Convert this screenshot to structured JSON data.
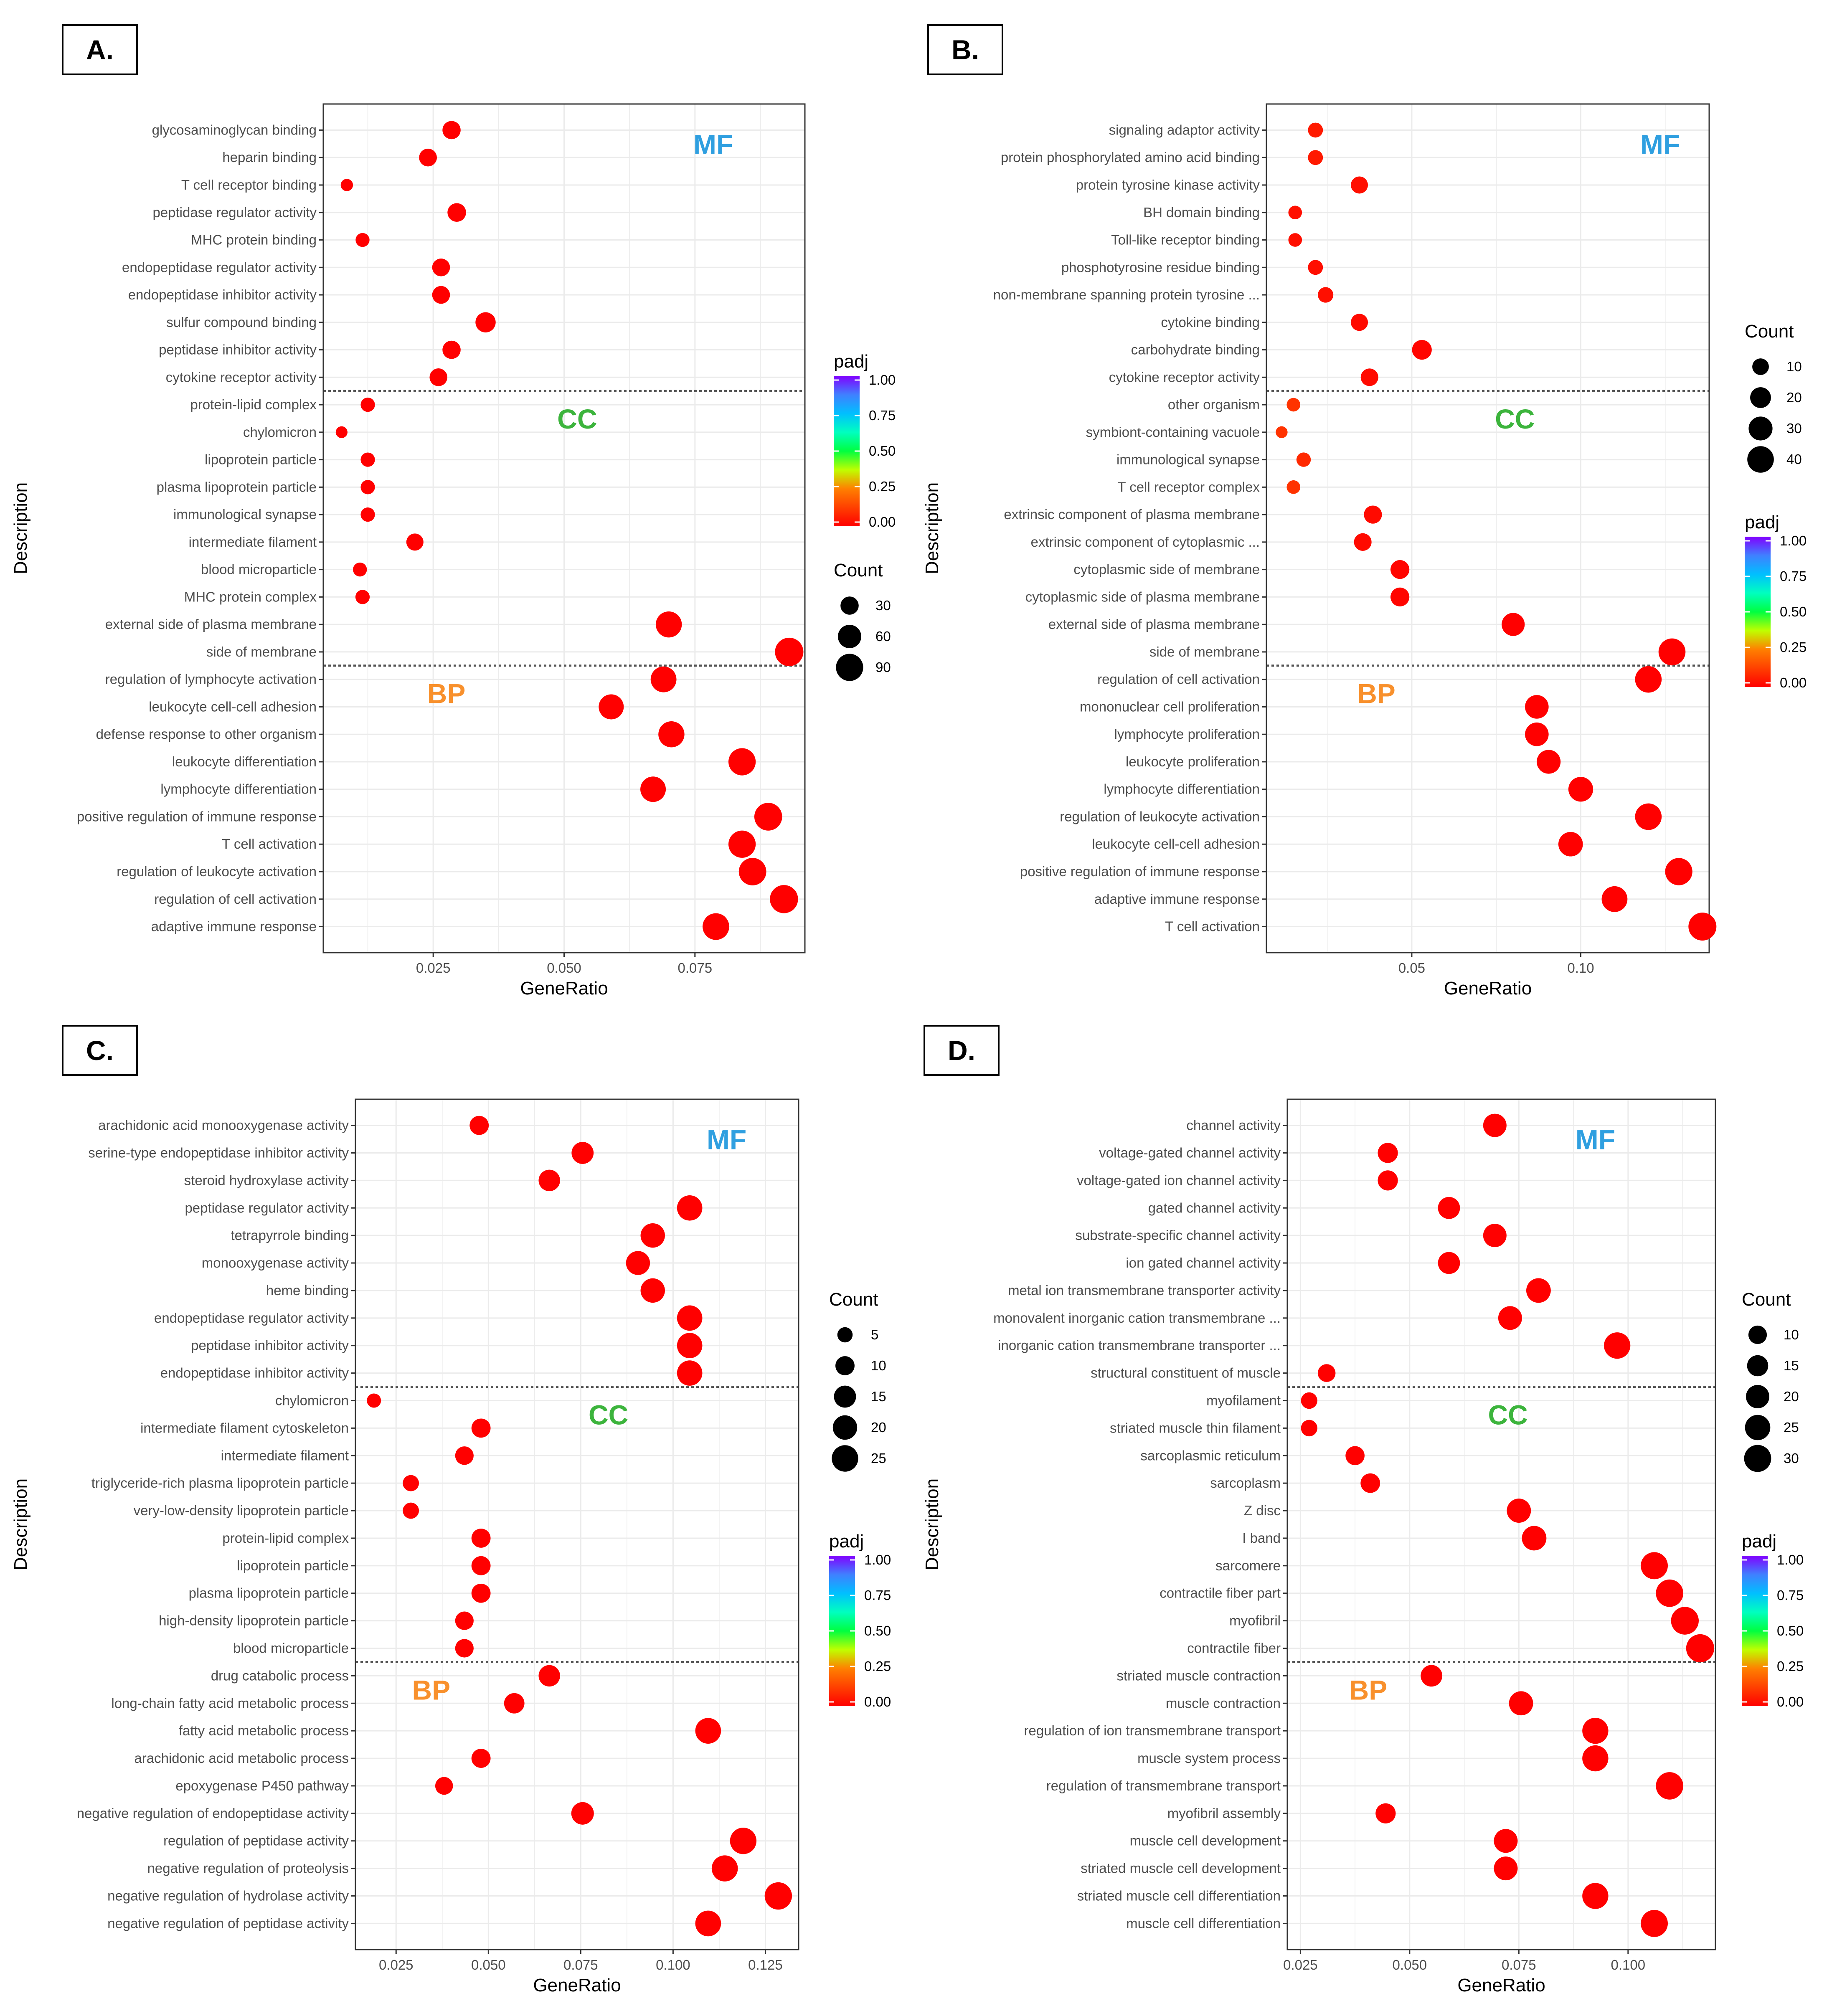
{
  "figure": {
    "padj_gradient": [
      "#FF0000",
      "#FF4000",
      "#FF8000",
      "#BFFF00",
      "#00FF40",
      "#00FFBF",
      "#00BFFF",
      "#4080FF",
      "#8000FF"
    ],
    "colors": {
      "MF": "#2F9FE0",
      "CC": "#3CB43C",
      "BP": "#F8902C",
      "point": "#FF0000"
    }
  },
  "chart_data": [
    {
      "type": "scatter",
      "panel": "A.",
      "xlabel": "GeneRatio",
      "ylabel": "Description",
      "xlim": [
        0.004,
        0.096
      ],
      "xticks": [
        {
          "v": 0.025,
          "label": "0.025"
        },
        {
          "v": 0.05,
          "label": "0.050"
        },
        {
          "v": 0.075,
          "label": "0.075"
        }
      ],
      "size_domain": [
        5,
        100
      ],
      "separators_after": [
        9,
        19
      ],
      "sections": [
        {
          "label": "MF",
          "row": 0.5,
          "x": 0.0785
        },
        {
          "label": "CC",
          "row": 10.5,
          "x": 0.0525
        },
        {
          "label": "BP",
          "row": 20.5,
          "x": 0.0275
        }
      ],
      "legends": [
        {
          "title": "padj",
          "type": "gradient",
          "labels": [
            "1.00",
            "0.75",
            "0.50",
            "0.25",
            "0.00"
          ]
        },
        {
          "title": "Count",
          "type": "size",
          "items": [
            {
              "label": "30",
              "v": 30
            },
            {
              "label": "60",
              "v": 60
            },
            {
              "label": "90",
              "v": 90
            }
          ]
        }
      ],
      "terms": [
        "glycosaminoglycan binding",
        "heparin binding",
        "T cell receptor binding",
        "peptidase regulator activity",
        "MHC protein binding",
        "endopeptidase regulator activity",
        "endopeptidase inhibitor activity",
        "sulfur compound binding",
        "peptidase inhibitor activity",
        "cytokine receptor activity",
        "protein-lipid complex",
        "chylomicron",
        "lipoprotein particle",
        "plasma lipoprotein particle",
        "immunological synapse",
        "intermediate filament",
        "blood microparticle",
        "MHC protein complex",
        "external side of plasma membrane",
        "side of membrane",
        "regulation of lymphocyte activation",
        "leukocyte cell-cell adhesion",
        "defense response to other organism",
        "leukocyte differentiation",
        "lymphocyte differentiation",
        "positive regulation of immune response",
        "T cell activation",
        "regulation of leukocyte activation",
        "regulation of cell activation",
        "adaptive immune response"
      ],
      "gene_ratio": [
        0.0285,
        0.024,
        0.0085,
        0.0295,
        0.0115,
        0.0265,
        0.0265,
        0.035,
        0.0285,
        0.026,
        0.0125,
        0.0075,
        0.0125,
        0.0125,
        0.0125,
        0.0215,
        0.011,
        0.0115,
        0.07,
        0.093,
        0.069,
        0.059,
        0.0705,
        0.084,
        0.067,
        0.089,
        0.084,
        0.086,
        0.092,
        0.079
      ],
      "count": [
        30,
        28,
        10,
        32,
        14,
        28,
        28,
        40,
        30,
        28,
        15,
        9,
        15,
        15,
        15,
        25,
        14,
        15,
        80,
        100,
        78,
        72,
        80,
        90,
        75,
        95,
        90,
        92,
        98,
        85
      ]
    },
    {
      "type": "scatter",
      "panel": "B.",
      "xlabel": "GeneRatio",
      "ylabel": "Description",
      "xlim": [
        0.007,
        0.138
      ],
      "xticks": [
        {
          "v": 0.05,
          "label": "0.05"
        },
        {
          "v": 0.1,
          "label": "0.10"
        }
      ],
      "size_domain": [
        1,
        48
      ],
      "separators_after": [
        9,
        19
      ],
      "sections": [
        {
          "label": "MF",
          "row": 0.5,
          "x": 0.1235
        },
        {
          "label": "CC",
          "row": 10.5,
          "x": 0.0805
        },
        {
          "label": "BP",
          "row": 20.5,
          "x": 0.0395
        }
      ],
      "legends": [
        {
          "title": "Count",
          "type": "size",
          "items": [
            {
              "label": "10",
              "v": 10
            },
            {
              "label": "20",
              "v": 20
            },
            {
              "label": "30",
              "v": 30
            },
            {
              "label": "40",
              "v": 40
            }
          ]
        },
        {
          "title": "padj",
          "type": "gradient",
          "labels": [
            "1.00",
            "0.75",
            "0.50",
            "0.25",
            "0.00"
          ]
        }
      ],
      "terms": [
        "signaling adaptor activity",
        "protein phosphorylated amino acid binding",
        "protein tyrosine kinase activity",
        "BH domain binding",
        "Toll-like receptor binding",
        "phosphotyrosine residue binding",
        "non-membrane spanning protein tyrosine ...",
        "cytokine binding",
        "carbohydrate binding",
        "cytokine receptor activity",
        "other organism",
        "symbiont-containing vacuole",
        "immunological synapse",
        "T cell receptor complex",
        "extrinsic component of plasma membrane",
        "extrinsic component of cytoplasmic ...",
        "cytoplasmic side of membrane",
        "cytoplasmic side of plasma membrane",
        "external side of plasma membrane",
        "side of membrane",
        "regulation of cell activation",
        "mononuclear cell proliferation",
        "lymphocyte proliferation",
        "leukocyte proliferation",
        "lymphocyte differentiation",
        "regulation of leukocyte activation",
        "leukocyte cell-cell adhesion",
        "positive regulation of immune response",
        "adaptive immune response",
        "T cell activation"
      ],
      "gene_ratio": [
        0.0215,
        0.0215,
        0.0345,
        0.0155,
        0.0155,
        0.0215,
        0.0245,
        0.0345,
        0.053,
        0.0375,
        0.015,
        0.0115,
        0.018,
        0.015,
        0.0385,
        0.0355,
        0.0465,
        0.0465,
        0.08,
        0.127,
        0.12,
        0.087,
        0.087,
        0.0905,
        0.1,
        0.12,
        0.097,
        0.129,
        0.11,
        0.136
      ],
      "padj": [
        0.05,
        0.05,
        0.03,
        0.03,
        0.03,
        0.03,
        0.03,
        0.02,
        0.01,
        0.02,
        0.1,
        0.1,
        0.08,
        0.1,
        0.02,
        0.02,
        0.01,
        0.01,
        0.0,
        0.0,
        0.0,
        0.0,
        0.0,
        0.0,
        0.0,
        0.0,
        0.0,
        0.0,
        0.0,
        0.0
      ],
      "count": [
        7,
        7,
        11,
        5,
        5,
        7,
        8,
        11,
        17,
        12,
        5,
        3,
        6,
        5,
        13,
        12,
        15,
        15,
        27,
        42,
        40,
        29,
        29,
        30,
        33,
        40,
        32,
        43,
        37,
        46
      ]
    },
    {
      "type": "scatter",
      "panel": "C.",
      "xlabel": "GeneRatio",
      "ylabel": "Description",
      "xlim": [
        0.014,
        0.134
      ],
      "xticks": [
        {
          "v": 0.025,
          "label": "0.025"
        },
        {
          "v": 0.05,
          "label": "0.050"
        },
        {
          "v": 0.075,
          "label": "0.075"
        },
        {
          "v": 0.1,
          "label": "0.100"
        },
        {
          "v": 0.125,
          "label": "0.125"
        }
      ],
      "size_domain": [
        1,
        30
      ],
      "separators_after": [
        9,
        19
      ],
      "sections": [
        {
          "label": "MF",
          "row": 0.5,
          "x": 0.1145
        },
        {
          "label": "CC",
          "row": 10.5,
          "x": 0.0825
        },
        {
          "label": "BP",
          "row": 20.5,
          "x": 0.0345
        }
      ],
      "legends": [
        {
          "title": "Count",
          "type": "size",
          "items": [
            {
              "label": "5",
              "v": 5
            },
            {
              "label": "10",
              "v": 10
            },
            {
              "label": "15",
              "v": 15
            },
            {
              "label": "20",
              "v": 20
            },
            {
              "label": "25",
              "v": 25
            }
          ]
        },
        {
          "title": "padj",
          "type": "gradient",
          "labels": [
            "1.00",
            "0.75",
            "0.50",
            "0.25",
            "0.00"
          ]
        }
      ],
      "terms": [
        "arachidonic acid monooxygenase activity",
        "serine-type endopeptidase inhibitor activity",
        "steroid hydroxylase activity",
        "peptidase regulator activity",
        "tetrapyrrole binding",
        "monooxygenase activity",
        "heme binding",
        "endopeptidase regulator activity",
        "peptidase inhibitor activity",
        "endopeptidase inhibitor activity",
        "chylomicron",
        "intermediate filament cytoskeleton",
        "intermediate filament",
        "triglyceride-rich plasma lipoprotein particle",
        "very-low-density lipoprotein particle",
        "protein-lipid complex",
        "lipoprotein particle",
        "plasma lipoprotein particle",
        "high-density lipoprotein particle",
        "blood microparticle",
        "drug catabolic process",
        "long-chain fatty acid metabolic process",
        "fatty acid metabolic process",
        "arachidonic acid metabolic process",
        "epoxygenase P450 pathway",
        "negative regulation of endopeptidase activity",
        "regulation of peptidase activity",
        "negative regulation of proteolysis",
        "negative regulation of hydrolase activity",
        "negative regulation of peptidase activity"
      ],
      "gene_ratio": [
        0.0475,
        0.0755,
        0.0665,
        0.1045,
        0.0945,
        0.0905,
        0.0945,
        0.1045,
        0.1045,
        0.1045,
        0.019,
        0.048,
        0.0435,
        0.029,
        0.029,
        0.048,
        0.048,
        0.048,
        0.0435,
        0.0435,
        0.0665,
        0.057,
        0.1095,
        0.048,
        0.038,
        0.0755,
        0.119,
        0.114,
        0.1285,
        0.1095
      ],
      "count": [
        10,
        15,
        14,
        22,
        20,
        19,
        20,
        22,
        22,
        22,
        4,
        10,
        9,
        6,
        6,
        10,
        10,
        10,
        9,
        9,
        14,
        12,
        23,
        10,
        8,
        16,
        25,
        24,
        27,
        23
      ]
    },
    {
      "type": "scatter",
      "panel": "D.",
      "xlabel": "GeneRatio",
      "ylabel": "Description",
      "xlim": [
        0.022,
        0.12
      ],
      "xticks": [
        {
          "v": 0.025,
          "label": "0.025"
        },
        {
          "v": 0.05,
          "label": "0.050"
        },
        {
          "v": 0.075,
          "label": "0.075"
        },
        {
          "v": 0.1,
          "label": "0.100"
        }
      ],
      "size_domain": [
        1,
        34
      ],
      "separators_after": [
        9,
        19
      ],
      "sections": [
        {
          "label": "MF",
          "row": 0.5,
          "x": 0.0925
        },
        {
          "label": "CC",
          "row": 10.5,
          "x": 0.0725
        },
        {
          "label": "BP",
          "row": 20.5,
          "x": 0.0405
        }
      ],
      "legends": [
        {
          "title": "Count",
          "type": "size",
          "items": [
            {
              "label": "10",
              "v": 10
            },
            {
              "label": "15",
              "v": 15
            },
            {
              "label": "20",
              "v": 20
            },
            {
              "label": "25",
              "v": 25
            },
            {
              "label": "30",
              "v": 30
            }
          ]
        },
        {
          "title": "padj",
          "type": "gradient",
          "labels": [
            "1.00",
            "0.75",
            "0.50",
            "0.25",
            "0.00"
          ]
        }
      ],
      "terms": [
        "channel activity",
        "voltage-gated channel activity",
        "voltage-gated ion channel activity",
        "gated channel activity",
        "substrate-specific channel activity",
        "ion gated channel activity",
        "metal ion transmembrane transporter activity",
        "monovalent inorganic cation transmembrane ...",
        "inorganic cation transmembrane transporter ...",
        "structural constituent of muscle",
        "myofilament",
        "striated muscle thin filament",
        "sarcoplasmic reticulum",
        "sarcoplasm",
        "Z disc",
        "I band",
        "sarcomere",
        "contractile fiber part",
        "myofibril",
        "contractile fiber",
        "striated muscle contraction",
        "muscle contraction",
        "regulation of ion transmembrane transport",
        "muscle system process",
        "regulation of transmembrane transport",
        "myofibril assembly",
        "muscle cell development",
        "striated muscle cell development",
        "striated muscle cell differentiation",
        "muscle cell differentiation"
      ],
      "gene_ratio": [
        0.0695,
        0.045,
        0.045,
        0.059,
        0.0695,
        0.059,
        0.0795,
        0.073,
        0.0975,
        0.031,
        0.027,
        0.027,
        0.0375,
        0.041,
        0.075,
        0.0785,
        0.106,
        0.1095,
        0.113,
        0.1165,
        0.055,
        0.0755,
        0.0925,
        0.0925,
        0.1095,
        0.0445,
        0.072,
        0.072,
        0.0925,
        0.106
      ],
      "count": [
        20,
        13,
        13,
        17,
        20,
        17,
        23,
        21,
        28,
        9,
        7,
        7,
        11,
        12,
        22,
        23,
        30,
        31,
        32,
        33,
        16,
        22,
        27,
        27,
        31,
        13,
        21,
        21,
        27,
        30
      ]
    }
  ]
}
